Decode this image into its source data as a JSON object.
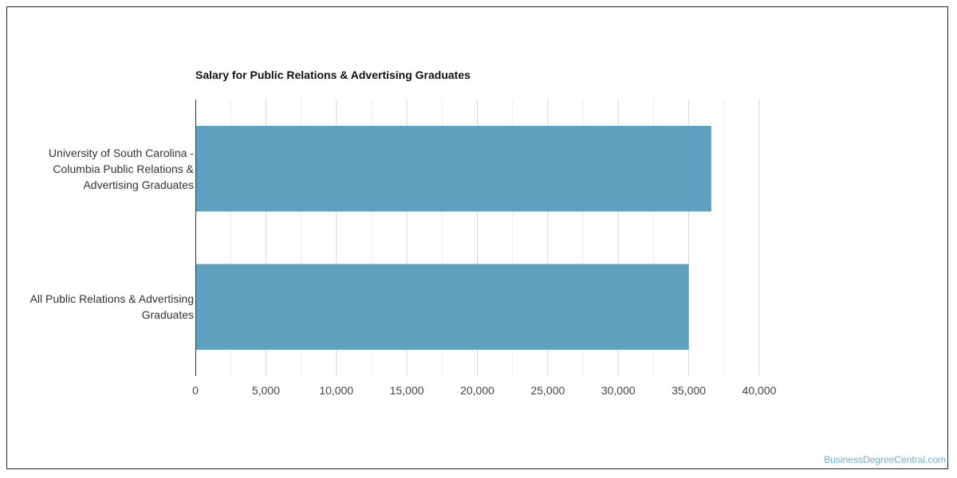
{
  "chart_data": {
    "type": "bar",
    "orientation": "horizontal",
    "title": "Salary for Public Relations & Advertising Graduates",
    "categories": [
      "University of South Carolina - Columbia Public Relations & Advertising Graduates",
      "All Public Relations & Advertising Graduates"
    ],
    "values": [
      36600,
      35000
    ],
    "xlim": [
      0,
      40000
    ],
    "xticks": [
      0,
      5000,
      10000,
      15000,
      20000,
      25000,
      30000,
      35000,
      40000
    ],
    "xtick_labels": [
      "0",
      "5,000",
      "10,000",
      "15,000",
      "20,000",
      "25,000",
      "30,000",
      "35,000",
      "40,000"
    ],
    "grid": true,
    "bar_color": "#5ea2bf"
  },
  "watermark": "BusinessDegreeCentral.com"
}
